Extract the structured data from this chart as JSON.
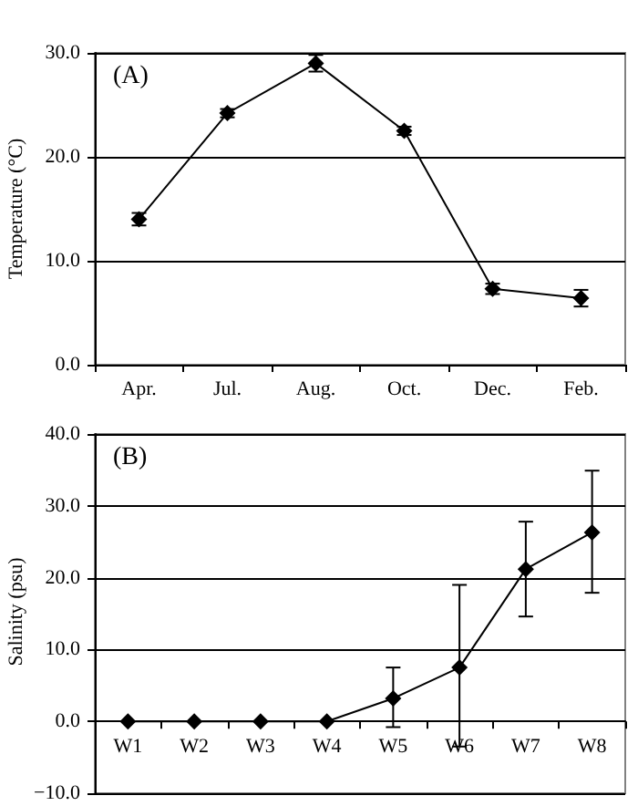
{
  "chart_data": [
    {
      "type": "line",
      "ylabel": "Temperature (°C)",
      "annotations": [
        "(A)"
      ],
      "categories": [
        "Apr.",
        "Jul.",
        "Aug.",
        "Oct.",
        "Dec.",
        "Feb."
      ],
      "series": [
        {
          "color": "#000000",
          "values": [
            14.0,
            24.2,
            29.0,
            22.5,
            7.3,
            6.4
          ],
          "errors": [
            [
              13.4,
              14.6
            ],
            [
              23.8,
              24.6
            ],
            [
              28.2,
              29.8
            ],
            [
              22.1,
              22.9
            ],
            [
              6.8,
              7.8
            ],
            [
              5.6,
              7.2
            ]
          ]
        }
      ],
      "ylim": [
        0,
        30
      ],
      "yticks": [
        {
          "value": 0,
          "label": "0.0"
        },
        {
          "value": 10,
          "label": "10.0"
        },
        {
          "value": 20,
          "label": "20.0"
        },
        {
          "value": 30,
          "label": "30.0"
        }
      ],
      "grid": "y",
      "marker": "diamond",
      "line_style": "solid"
    },
    {
      "type": "line",
      "ylabel": "Salinity (psu)",
      "annotations": [
        "(B)"
      ],
      "categories": [
        "W1",
        "W2",
        "W3",
        "W4",
        "W5",
        "W6",
        "W7",
        "W8"
      ],
      "series": [
        {
          "color": "#000000",
          "values": [
            0,
            0,
            0,
            0,
            3.2,
            7.5,
            21.2,
            26.3
          ],
          "errors": [
            null,
            null,
            null,
            null,
            [
              -0.8,
              7.5
            ],
            [
              -3.5,
              19.0
            ],
            [
              14.6,
              27.8
            ],
            [
              17.9,
              34.9
            ]
          ]
        }
      ],
      "ylim": [
        -10,
        40
      ],
      "yticks": [
        {
          "value": -10,
          "label": "−10.0"
        },
        {
          "value": 0,
          "label": "0.0"
        },
        {
          "value": 10,
          "label": "10.0"
        },
        {
          "value": 20,
          "label": "20.0"
        },
        {
          "value": 30,
          "label": "30.0"
        },
        {
          "value": 40,
          "label": "40.0"
        }
      ],
      "grid": "y",
      "marker": "diamond",
      "line_style": "solid"
    }
  ]
}
